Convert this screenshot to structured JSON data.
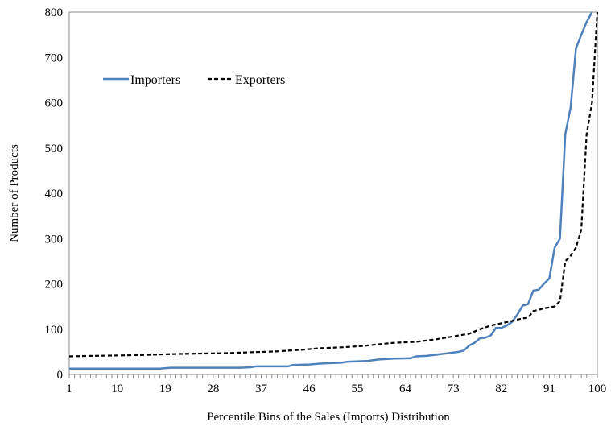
{
  "chart_data": {
    "type": "line",
    "title": "",
    "xlabel": "Percentile Bins of the Sales (Imports) Distribution",
    "ylabel": "Number of Products",
    "xlim": [
      1,
      100
    ],
    "ylim": [
      0,
      800
    ],
    "x_ticks": [
      "1",
      "10",
      "19",
      "28",
      "37",
      "46",
      "55",
      "64",
      "73",
      "82",
      "91",
      "100"
    ],
    "y_ticks": [
      "0",
      "100",
      "200",
      "300",
      "400",
      "500",
      "600",
      "700",
      "800"
    ],
    "grid": false,
    "legend_position": "upper-left",
    "series": [
      {
        "name": "Importers",
        "style": "solid",
        "color": "#4f81bd",
        "points": [
          [
            1,
            13
          ],
          [
            10,
            13
          ],
          [
            18,
            13
          ],
          [
            20,
            15
          ],
          [
            33,
            15
          ],
          [
            35,
            16
          ],
          [
            36,
            18
          ],
          [
            42,
            18
          ],
          [
            43,
            21
          ],
          [
            46,
            22
          ],
          [
            48,
            24
          ],
          [
            50,
            25
          ],
          [
            52,
            26
          ],
          [
            53,
            28
          ],
          [
            57,
            30
          ],
          [
            59,
            33
          ],
          [
            62,
            35
          ],
          [
            65,
            36
          ],
          [
            66,
            40
          ],
          [
            68,
            41
          ],
          [
            70,
            44
          ],
          [
            72,
            47
          ],
          [
            74,
            50
          ],
          [
            75,
            53
          ],
          [
            76,
            64
          ],
          [
            77,
            70
          ],
          [
            78,
            80
          ],
          [
            79,
            81
          ],
          [
            80,
            86
          ],
          [
            81,
            103
          ],
          [
            82,
            103
          ],
          [
            83,
            108
          ],
          [
            84,
            116
          ],
          [
            85,
            132
          ],
          [
            86,
            152
          ],
          [
            87,
            155
          ],
          [
            88,
            185
          ],
          [
            89,
            187
          ],
          [
            90,
            200
          ],
          [
            91,
            212
          ],
          [
            92,
            280
          ],
          [
            93,
            300
          ],
          [
            94,
            530
          ],
          [
            95,
            590
          ],
          [
            96,
            720
          ],
          [
            97,
            750
          ],
          [
            98,
            778
          ],
          [
            99,
            800
          ]
        ]
      },
      {
        "name": "Exporters",
        "style": "dashed",
        "color": "#000000",
        "points": [
          [
            1,
            40
          ],
          [
            5,
            41
          ],
          [
            10,
            42
          ],
          [
            15,
            43
          ],
          [
            20,
            45
          ],
          [
            25,
            46
          ],
          [
            30,
            47
          ],
          [
            35,
            49
          ],
          [
            40,
            51
          ],
          [
            45,
            55
          ],
          [
            48,
            58
          ],
          [
            52,
            60
          ],
          [
            56,
            63
          ],
          [
            60,
            68
          ],
          [
            62,
            70
          ],
          [
            66,
            72
          ],
          [
            68,
            75
          ],
          [
            70,
            78
          ],
          [
            72,
            82
          ],
          [
            74,
            86
          ],
          [
            76,
            90
          ],
          [
            78,
            100
          ],
          [
            80,
            108
          ],
          [
            82,
            113
          ],
          [
            84,
            118
          ],
          [
            86,
            124
          ],
          [
            87,
            125
          ],
          [
            88,
            140
          ],
          [
            90,
            146
          ],
          [
            92,
            150
          ],
          [
            93,
            162
          ],
          [
            94,
            250
          ],
          [
            95,
            262
          ],
          [
            96,
            280
          ],
          [
            97,
            320
          ],
          [
            98,
            530
          ],
          [
            99,
            600
          ],
          [
            100,
            800
          ]
        ]
      }
    ]
  }
}
